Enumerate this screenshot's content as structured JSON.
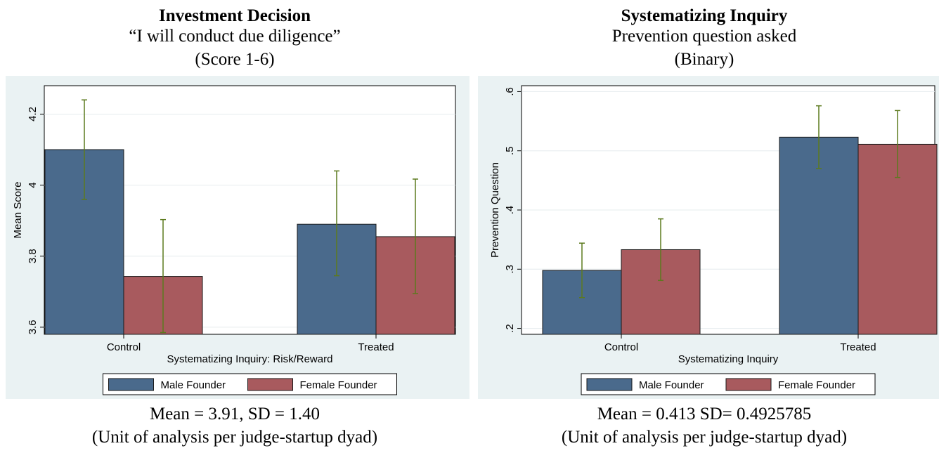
{
  "chart_data": [
    {
      "type": "bar",
      "title": "Investment Decision",
      "subtitle": "“I will conduct due diligence”",
      "unit_note": "(Score 1-6)",
      "xlabel": "Systematizing Inquiry: Risk/Reward",
      "ylabel": "Mean Score",
      "categories": [
        "Control",
        "Treated"
      ],
      "ylim": [
        3.58,
        4.28
      ],
      "yticks": [
        3.6,
        3.8,
        4,
        4.2
      ],
      "ytick_labels": [
        "3.6",
        "3.8",
        "4",
        "4.2"
      ],
      "grid": true,
      "legend": "bottom",
      "series": [
        {
          "name": "Male Founder",
          "color": "#4a6a8c",
          "values": [
            4.1,
            3.89
          ],
          "ci_low": [
            3.96,
            3.745
          ],
          "ci_high": [
            4.24,
            4.04
          ]
        },
        {
          "name": "Female Founder",
          "color": "#a85a5e",
          "values": [
            3.743,
            3.855
          ],
          "ci_low": [
            3.585,
            3.695
          ],
          "ci_high": [
            3.903,
            4.017
          ]
        }
      ],
      "footnote": "Mean = 3.91, SD = 1.40",
      "footnote2": "(Unit of analysis per judge-startup dyad)"
    },
    {
      "type": "bar",
      "title": "Systematizing Inquiry",
      "subtitle": "Prevention question asked",
      "unit_note": "(Binary)",
      "xlabel": "Systematizing Inquiry",
      "ylabel": "Prevention Question",
      "categories": [
        "Control",
        "Treated"
      ],
      "ylim": [
        0.19,
        0.61
      ],
      "yticks": [
        0.2,
        0.3,
        0.4,
        0.5,
        0.6
      ],
      "ytick_labels": [
        ".2",
        ".3",
        ".4",
        ".5",
        ".6"
      ],
      "grid": true,
      "legend": "bottom",
      "series": [
        {
          "name": "Male Founder",
          "color": "#4a6a8c",
          "values": [
            0.298,
            0.523
          ],
          "ci_low": [
            0.252,
            0.47
          ],
          "ci_high": [
            0.344,
            0.576
          ]
        },
        {
          "name": "Female Founder",
          "color": "#a85a5e",
          "values": [
            0.333,
            0.511
          ],
          "ci_low": [
            0.281,
            0.455
          ],
          "ci_high": [
            0.385,
            0.568
          ]
        }
      ],
      "footnote": "Mean = 0.413   SD= 0.4925785",
      "footnote2": "(Unit of analysis per judge-startup dyad)"
    }
  ],
  "colors": {
    "chart_background": "#eaf2f3",
    "plot_background": "#ffffff",
    "error_bar": "#5c7a1e"
  }
}
